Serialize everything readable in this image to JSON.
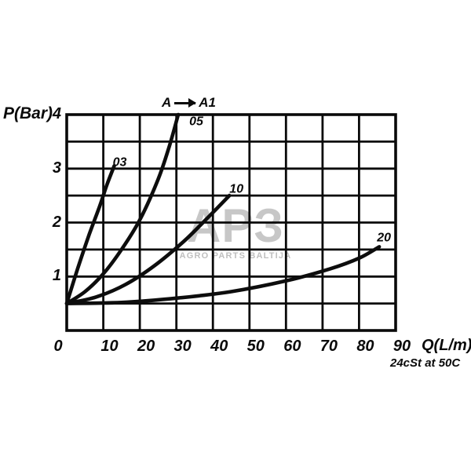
{
  "watermark": {
    "logo": "APЗ",
    "subtitle": "AGRO PARTS BALTIJA",
    "logo_color": "#c7c7c7",
    "subtitle_color": "#bfbfbf"
  },
  "chart_data": {
    "type": "line",
    "xlabel": "Q(L/m)",
    "ylabel": "P(Bar)",
    "note": "24cSt at 50C",
    "annotation": {
      "from": "A",
      "to": "A1"
    },
    "xlim": [
      0,
      90
    ],
    "ylim": [
      0,
      4
    ],
    "grid": true,
    "grid_x_step": 10,
    "grid_y_step": 0.5,
    "x_ticks": [
      0,
      10,
      20,
      30,
      40,
      50,
      60,
      70,
      80,
      90
    ],
    "y_ticks": [
      4,
      3,
      2,
      1
    ],
    "line_color": "#0d0d0d",
    "grid_color": "#0a0a0a",
    "series": [
      {
        "name": "03",
        "points": [
          [
            0,
            0.5
          ],
          [
            3,
            1.15
          ],
          [
            6,
            1.75
          ],
          [
            9,
            2.3
          ],
          [
            11,
            2.7
          ],
          [
            13,
            3.05
          ]
        ]
      },
      {
        "name": "05",
        "points": [
          [
            0,
            0.5
          ],
          [
            5,
            0.72
          ],
          [
            10,
            1.05
          ],
          [
            15,
            1.5
          ],
          [
            20,
            2.05
          ],
          [
            25,
            2.8
          ],
          [
            28,
            3.4
          ],
          [
            30.5,
            4.0
          ]
        ]
      },
      {
        "name": "10",
        "points": [
          [
            0,
            0.5
          ],
          [
            8,
            0.62
          ],
          [
            16,
            0.85
          ],
          [
            24,
            1.2
          ],
          [
            32,
            1.65
          ],
          [
            38,
            2.05
          ],
          [
            44.5,
            2.5
          ]
        ]
      },
      {
        "name": "20",
        "points": [
          [
            0,
            0.5
          ],
          [
            15,
            0.52
          ],
          [
            30,
            0.6
          ],
          [
            45,
            0.72
          ],
          [
            60,
            0.92
          ],
          [
            72,
            1.14
          ],
          [
            80,
            1.34
          ],
          [
            85.5,
            1.55
          ]
        ]
      }
    ]
  }
}
